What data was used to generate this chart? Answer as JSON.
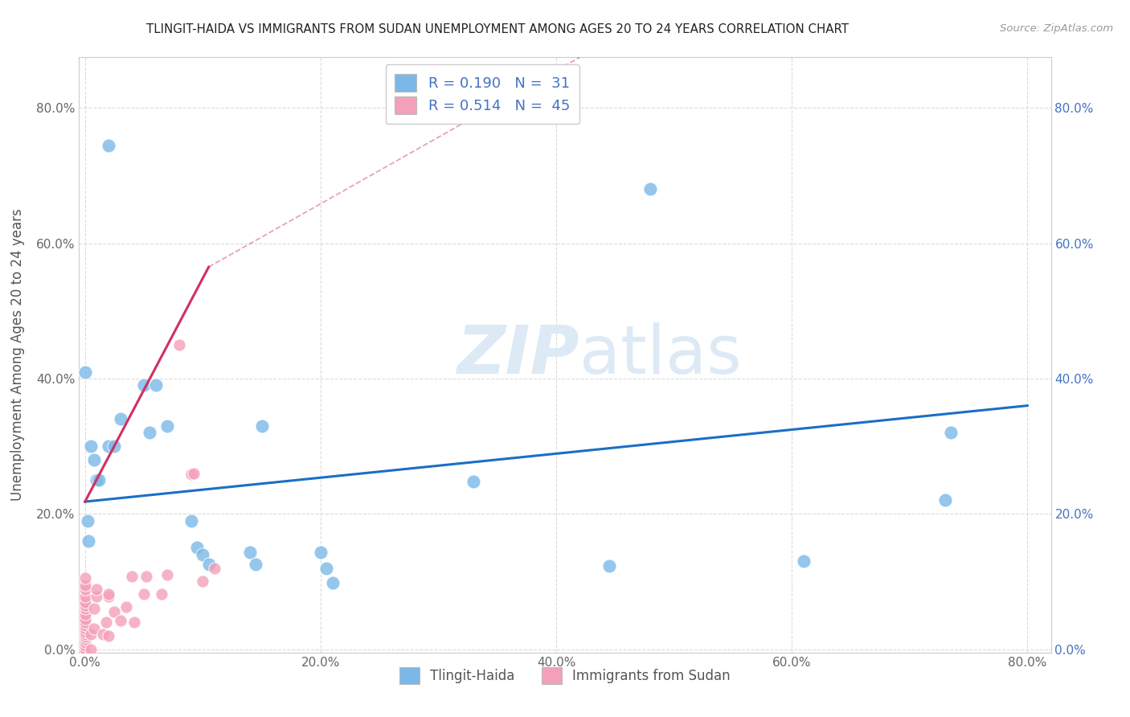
{
  "title": "TLINGIT-HAIDA VS IMMIGRANTS FROM SUDAN UNEMPLOYMENT AMONG AGES 20 TO 24 YEARS CORRELATION CHART",
  "source": "Source: ZipAtlas.com",
  "ylabel": "Unemployment Among Ages 20 to 24 years",
  "xlim": [
    -0.005,
    0.82
  ],
  "ylim": [
    -0.005,
    0.875
  ],
  "xticks": [
    0.0,
    0.2,
    0.4,
    0.6,
    0.8
  ],
  "xticklabels": [
    "0.0%",
    "20.0%",
    "40.0%",
    "60.0%",
    "80.0%"
  ],
  "yticks": [
    0.0,
    0.2,
    0.4,
    0.6,
    0.8
  ],
  "yticklabels": [
    "0.0%",
    "20.0%",
    "40.0%",
    "60.0%",
    "80.0%"
  ],
  "right_yticklabels": [
    "0.0%",
    "20.0%",
    "40.0%",
    "60.0%",
    "80.0%"
  ],
  "legend_label1": "Tlingit-Haida",
  "legend_label2": "Immigrants from Sudan",
  "blue_color": "#7bb8e8",
  "pink_color": "#f4a0b8",
  "trend_blue": "#1a6fc4",
  "trend_pink": "#d03060",
  "background_color": "#ffffff",
  "blue_scatter_x": [
    0.02,
    0.0,
    0.005,
    0.008,
    0.01,
    0.012,
    0.002,
    0.003,
    0.05,
    0.055,
    0.07,
    0.09,
    0.095,
    0.1,
    0.105,
    0.14,
    0.145,
    0.15,
    0.2,
    0.205,
    0.21,
    0.33,
    0.445,
    0.48,
    0.61,
    0.73,
    0.735,
    0.06,
    0.02,
    0.025,
    0.03
  ],
  "blue_scatter_y": [
    0.745,
    0.41,
    0.3,
    0.28,
    0.25,
    0.25,
    0.19,
    0.16,
    0.39,
    0.32,
    0.33,
    0.19,
    0.15,
    0.14,
    0.125,
    0.143,
    0.125,
    0.33,
    0.143,
    0.12,
    0.098,
    0.248,
    0.123,
    0.68,
    0.13,
    0.22,
    0.32,
    0.39,
    0.3,
    0.3,
    0.34
  ],
  "pink_scatter_x": [
    0.0,
    0.0,
    0.0,
    0.0,
    0.0,
    0.0,
    0.0,
    0.0,
    0.0,
    0.0,
    0.0,
    0.0,
    0.0,
    0.0,
    0.0,
    0.0,
    0.0,
    0.0,
    0.0,
    0.0,
    0.005,
    0.005,
    0.008,
    0.008,
    0.01,
    0.01,
    0.015,
    0.018,
    0.02,
    0.02,
    0.02,
    0.025,
    0.03,
    0.035,
    0.04,
    0.042,
    0.05,
    0.052,
    0.065,
    0.07,
    0.08,
    0.09,
    0.092,
    0.1,
    0.11
  ],
  "pink_scatter_y": [
    0.0,
    0.0,
    0.005,
    0.01,
    0.015,
    0.018,
    0.022,
    0.025,
    0.03,
    0.035,
    0.04,
    0.045,
    0.052,
    0.06,
    0.065,
    0.07,
    0.078,
    0.088,
    0.095,
    0.105,
    0.0,
    0.022,
    0.03,
    0.06,
    0.078,
    0.088,
    0.022,
    0.04,
    0.02,
    0.078,
    0.082,
    0.055,
    0.042,
    0.062,
    0.108,
    0.04,
    0.082,
    0.108,
    0.082,
    0.11,
    0.45,
    0.258,
    0.26,
    0.1,
    0.12
  ],
  "blue_trend_x0": 0.0,
  "blue_trend_x1": 0.8,
  "blue_trend_y0": 0.218,
  "blue_trend_y1": 0.36,
  "pink_trend_solid_x0": 0.0,
  "pink_trend_solid_x1": 0.105,
  "pink_trend_solid_y0": 0.218,
  "pink_trend_solid_y1": 0.565,
  "pink_trend_dash_x0": 0.105,
  "pink_trend_dash_x1": 0.42,
  "pink_trend_dash_y0": 0.565,
  "pink_trend_dash_y1": 0.875
}
